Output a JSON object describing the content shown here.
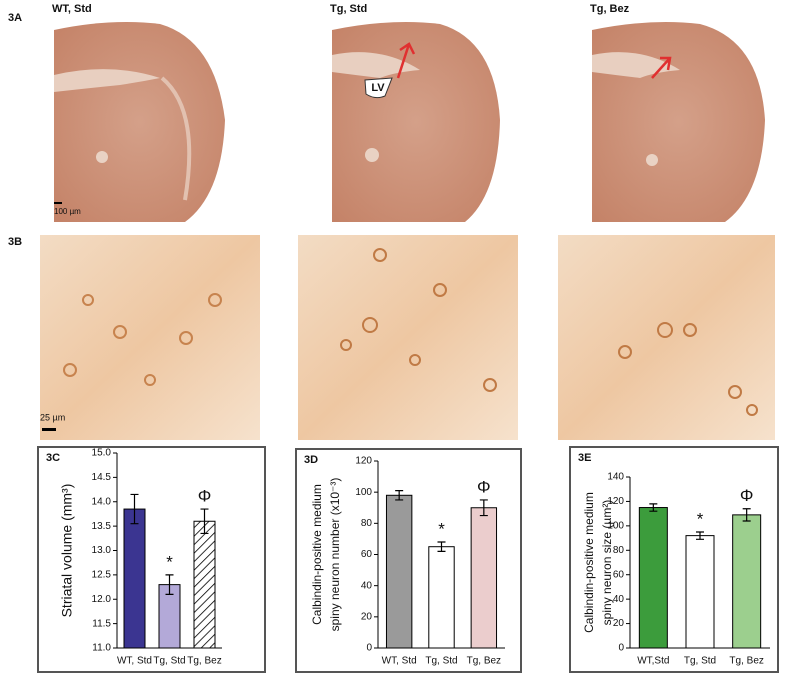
{
  "figure": {
    "panel_a": {
      "label": "3A",
      "titles": [
        "WT, Std",
        "Tg, Std",
        "Tg, Bez"
      ],
      "lv_label": "LV",
      "scale_bar": "100 µm"
    },
    "panel_b": {
      "label": "3B",
      "scale_bar": "25 µm"
    }
  },
  "chart_data": [
    {
      "type": "bar",
      "label": "3C",
      "ylabel": [
        "Striatal volume (mm³)"
      ],
      "categories": [
        "WT, Std",
        "Tg, Std",
        "Tg, Bez"
      ],
      "values": [
        13.85,
        12.3,
        13.6
      ],
      "errors": [
        0.3,
        0.2,
        0.25
      ],
      "colors": [
        "#3b3591",
        "#b3a9d8",
        "#ffffff"
      ],
      "hatch": [
        false,
        false,
        true
      ],
      "value_annotations": [
        null,
        "*",
        "Φ"
      ],
      "ylim": [
        11,
        15
      ],
      "yticks": [
        {
          "value": 11,
          "label": "11.0"
        },
        {
          "value": 11.5,
          "label": "11.5"
        },
        {
          "value": 12,
          "label": "12.0"
        },
        {
          "value": 12.5,
          "label": "12.5"
        },
        {
          "value": 13,
          "label": "13.0"
        },
        {
          "value": 13.5,
          "label": "13.5"
        },
        {
          "value": 14,
          "label": "14.0"
        },
        {
          "value": 14.5,
          "label": "14.5"
        },
        {
          "value": 15,
          "label": "15.0"
        }
      ]
    },
    {
      "type": "bar",
      "label": "3D",
      "ylabel": [
        "Calbindin-positive medium",
        "spiny neuron number (x10⁻³)"
      ],
      "categories": [
        "WT, Std",
        "Tg, Std",
        "Tg, Bez"
      ],
      "values": [
        98,
        65,
        90
      ],
      "errors": [
        3,
        3,
        5
      ],
      "colors": [
        "#9a9a9a",
        "#ffffff",
        "#ebcdcd"
      ],
      "hatch": [
        false,
        false,
        false
      ],
      "value_annotations": [
        null,
        "*",
        "Φ"
      ],
      "ylim": [
        0,
        120
      ],
      "yticks": [
        0,
        20,
        40,
        60,
        80,
        100,
        120
      ]
    },
    {
      "type": "bar",
      "label": "3E",
      "ylabel": [
        "Calbindin-positive medium",
        "spiny neuron size (µm²)"
      ],
      "categories": [
        "WT,Std",
        "Tg, Std",
        "Tg, Bez"
      ],
      "values": [
        115,
        92,
        109
      ],
      "errors": [
        3,
        3,
        5
      ],
      "colors": [
        "#3c9c3c",
        "#ffffff",
        "#9ccf8e"
      ],
      "hatch": [
        false,
        false,
        false
      ],
      "value_annotations": [
        null,
        "*",
        "Φ"
      ],
      "ylim": [
        0,
        140
      ],
      "yticks": [
        0,
        20,
        40,
        60,
        80,
        100,
        120,
        140
      ]
    }
  ]
}
